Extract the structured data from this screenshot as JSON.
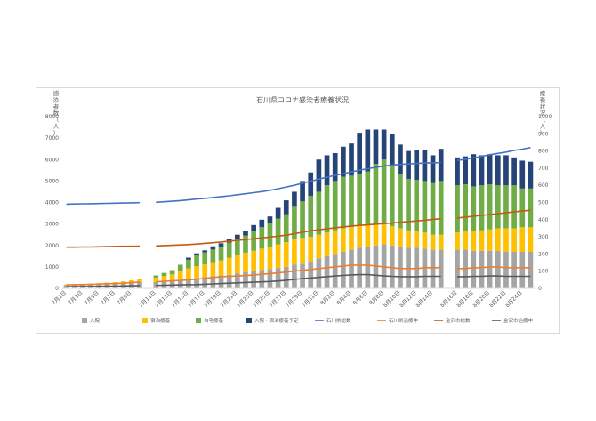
{
  "chart_data": {
    "type": "bar",
    "stacked": true,
    "title": "石川県コロナ感染者療養状況",
    "ylabel_left": "感染者数（人）",
    "ylabel_right": "療養状況（人）",
    "ylim_left": [
      0,
      8000
    ],
    "yticks_left": [
      "0",
      "1000",
      "2000",
      "3000",
      "4000",
      "5000",
      "6000",
      "7000",
      "8000"
    ],
    "ylim_right": [
      0,
      1000
    ],
    "yticks_right": [
      "0",
      "100",
      "200",
      "300",
      "400",
      "500",
      "600",
      "700",
      "800",
      "900",
      "1000"
    ],
    "grid": false,
    "legend_position": "bottom",
    "x": [
      "7月1日",
      "7月2日",
      "7月3日",
      "7月4日",
      "7月5日",
      "7月6日",
      "7月7日",
      "7月8日",
      "7月9日",
      "7月10日",
      "",
      "7月11日",
      "7月12日",
      "7月13日",
      "7月14日",
      "7月15日",
      "7月16日",
      "7月17日",
      "7月18日",
      "7月19日",
      "7月20日",
      "7月21日",
      "7月22日",
      "7月23日",
      "7月24日",
      "7月25日",
      "7月26日",
      "7月27日",
      "7月28日",
      "7月29日",
      "7月30日",
      "7月31日",
      "8月1日",
      "8月2日",
      "8月3日",
      "8月4日",
      "8月5日",
      "8月6日",
      "8月7日",
      "8月8日",
      "8月9日",
      "8月10日",
      "8月11日",
      "8月12日",
      "8月13日",
      "8月14日",
      "8月15日",
      "",
      "8月16日",
      "8月17日",
      "8月18日",
      "8月19日",
      "8月20日",
      "8月21日",
      "8月22日",
      "8月23日",
      "8月24日",
      "8月25日"
    ],
    "x_tick_labels": [
      "7月1日",
      "7月3日",
      "7月5日",
      "7月7日",
      "7月9日",
      "7月11日",
      "7月13日",
      "7月15日",
      "7月17日",
      "7月19日",
      "7月21日",
      "7月23日",
      "7月25日",
      "7月27日",
      "7月29日",
      "7月31日",
      "8月2日",
      "8月4日",
      "8月6日",
      "8月8日",
      "8月10日",
      "8月12日",
      "8月14日",
      "8月16日",
      "8月18日",
      "8月20日",
      "8月22日",
      "8月24日"
    ],
    "series": [
      {
        "name": "入院",
        "kind": "bar",
        "axis": "left",
        "color": "#a5a5a5",
        "values": [
          150,
          150,
          160,
          170,
          180,
          200,
          210,
          230,
          260,
          300,
          null,
          300,
          320,
          350,
          400,
          430,
          480,
          520,
          560,
          600,
          630,
          700,
          760,
          800,
          850,
          900,
          950,
          1000,
          1100,
          1150,
          1250,
          1400,
          1500,
          1600,
          1700,
          1800,
          1900,
          1950,
          2000,
          2050,
          2000,
          1950,
          1900,
          1900,
          1850,
          1800,
          1800,
          null,
          1800,
          1800,
          1750,
          1750,
          1750,
          1750,
          1700,
          1700,
          1700,
          1700
        ]
      },
      {
        "name": "宿泊療養",
        "kind": "bar",
        "axis": "left",
        "color": "#ffc000",
        "values": [
          30,
          40,
          40,
          50,
          60,
          70,
          80,
          100,
          120,
          150,
          null,
          200,
          250,
          300,
          400,
          500,
          550,
          600,
          650,
          700,
          800,
          850,
          900,
          950,
          1000,
          1050,
          1100,
          1150,
          1200,
          1200,
          1150,
          1100,
          1100,
          1100,
          1100,
          1050,
          1050,
          1000,
          1000,
          950,
          900,
          850,
          800,
          750,
          750,
          700,
          700,
          null,
          800,
          850,
          900,
          950,
          1000,
          1050,
          1100,
          1100,
          1150,
          1150
        ]
      },
      {
        "name": "自宅療養",
        "kind": "bar",
        "axis": "left",
        "color": "#70ad47",
        "values": [
          0,
          0,
          0,
          0,
          0,
          0,
          0,
          0,
          0,
          0,
          null,
          100,
          150,
          200,
          300,
          400,
          500,
          550,
          600,
          650,
          700,
          750,
          800,
          900,
          1000,
          1100,
          1200,
          1300,
          1500,
          1700,
          1900,
          2000,
          2200,
          2300,
          2400,
          2400,
          2400,
          2500,
          2800,
          3000,
          2800,
          2500,
          2400,
          2400,
          2400,
          2400,
          2500,
          null,
          2200,
          2200,
          2100,
          2100,
          2100,
          2000,
          2000,
          2000,
          1800,
          1800
        ]
      },
      {
        "name": "入院・宿泊療養予定",
        "kind": "bar",
        "axis": "left",
        "color": "#264478",
        "values": [
          0,
          0,
          0,
          0,
          0,
          0,
          0,
          0,
          0,
          0,
          null,
          0,
          0,
          0,
          0,
          100,
          100,
          100,
          150,
          150,
          150,
          200,
          200,
          300,
          350,
          300,
          500,
          650,
          700,
          950,
          1100,
          1500,
          1400,
          1300,
          1400,
          1500,
          1900,
          1950,
          1600,
          1400,
          1500,
          1400,
          1300,
          1400,
          1450,
          1300,
          1500,
          null,
          1300,
          1300,
          1500,
          1400,
          1400,
          1400,
          1400,
          1300,
          1300,
          1250
        ]
      },
      {
        "name": "石川県総数",
        "kind": "line",
        "axis": "right",
        "color": "#4472c4",
        "values": [
          490,
          491,
          492,
          493,
          494,
          495,
          496,
          497,
          498,
          499,
          null,
          501,
          504,
          507,
          511,
          515,
          520,
          524,
          529,
          534,
          539,
          545,
          551,
          557,
          563,
          571,
          580,
          590,
          600,
          612,
          624,
          636,
          647,
          658,
          668,
          678,
          688,
          697,
          705,
          712,
          718,
          722,
          725,
          727,
          730,
          730,
          733,
          null,
          745,
          752,
          760,
          769,
          778,
          786,
          794,
          803,
          811,
          820
        ]
      },
      {
        "name": "石川県治療中",
        "kind": "line",
        "axis": "right",
        "color": "#ed7d31",
        "values": [
          20,
          21,
          22,
          23,
          25,
          27,
          28,
          30,
          34,
          36,
          null,
          38,
          41,
          44,
          46,
          49,
          53,
          58,
          63,
          68,
          70,
          72,
          74,
          78,
          82,
          86,
          90,
          95,
          100,
          105,
          110,
          115,
          120,
          125,
          130,
          135,
          135,
          135,
          130,
          125,
          120,
          115,
          115,
          115,
          120,
          120,
          120,
          null,
          115,
          115,
          120,
          120,
          125,
          125,
          120,
          120,
          120,
          120
        ]
      },
      {
        "name": "金沢市総数",
        "kind": "line",
        "axis": "right",
        "color": "#c55a11",
        "values": [
          240,
          240,
          241,
          241,
          242,
          243,
          244,
          245,
          245,
          246,
          null,
          247,
          249,
          251,
          253,
          255,
          258,
          262,
          266,
          270,
          275,
          280,
          284,
          289,
          294,
          299,
          304,
          310,
          318,
          327,
          335,
          341,
          347,
          353,
          358,
          363,
          367,
          370,
          374,
          377,
          381,
          385,
          389,
          393,
          397,
          402,
          405,
          null,
          410,
          415,
          420,
          425,
          430,
          435,
          440,
          445,
          450,
          455
        ]
      },
      {
        "name": "金沢市治療中",
        "kind": "line",
        "axis": "right",
        "color": "#595959",
        "values": [
          10,
          10,
          11,
          11,
          12,
          13,
          13,
          14,
          15,
          16,
          null,
          17,
          18,
          19,
          20,
          21,
          22,
          24,
          26,
          28,
          30,
          32,
          34,
          36,
          38,
          40,
          43,
          47,
          52,
          57,
          60,
          64,
          68,
          72,
          75,
          78,
          80,
          80,
          76,
          72,
          70,
          68,
          68,
          68,
          70,
          70,
          70,
          null,
          68,
          68,
          70,
          70,
          72,
          72,
          70,
          70,
          70,
          70
        ]
      }
    ]
  }
}
